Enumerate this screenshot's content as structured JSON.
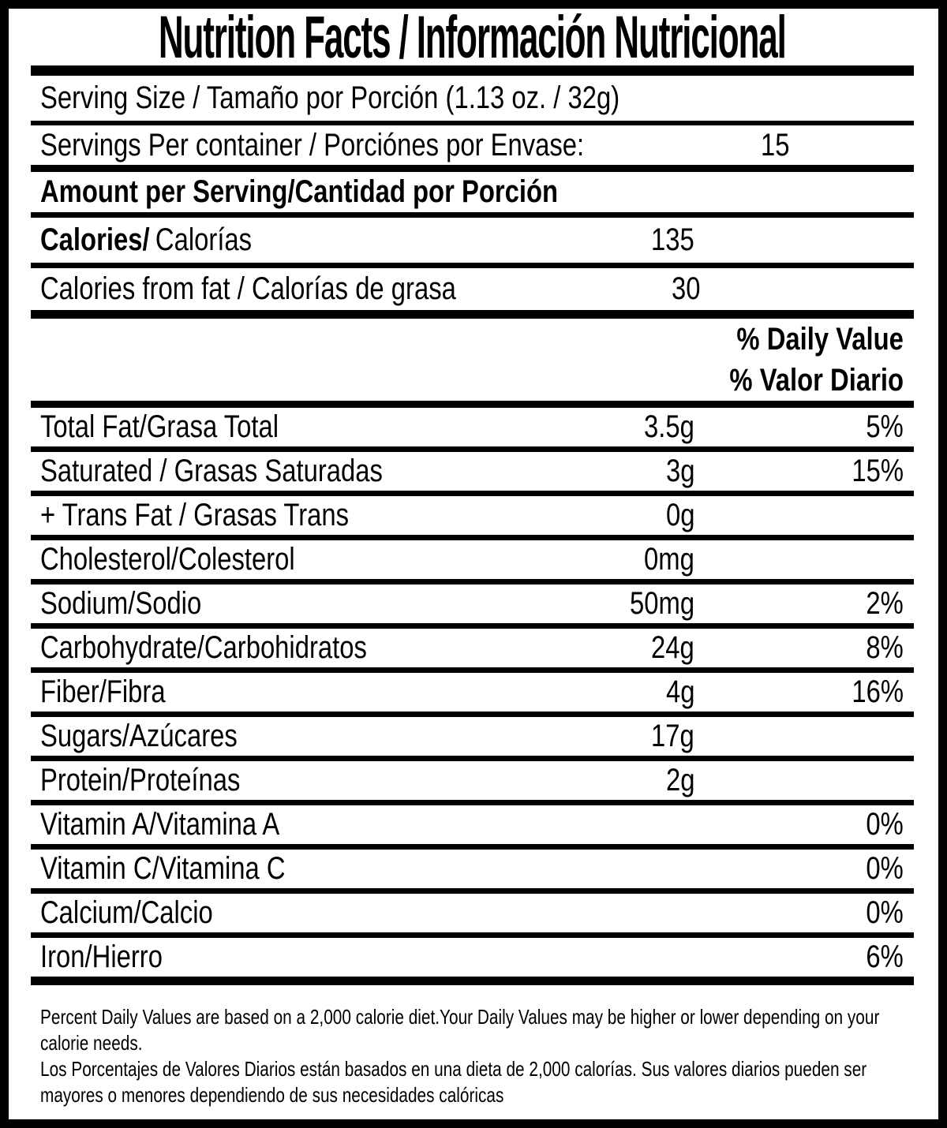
{
  "colors": {
    "ink": "#000000",
    "background": "#ffffff"
  },
  "title": "Nutrition Facts / Información Nutricional",
  "serving": {
    "size_label": "Serving Size / Tamaño por Porción (1.13 oz. / 32g)",
    "per_container_label": "Servings Per container / Porciónes por Envase:",
    "per_container_value": "15"
  },
  "amount_per_serving_label": "Amount per Serving/Cantidad por Porción",
  "calories": {
    "label_en": "Calories/",
    "label_es": "Calorías",
    "value": "135"
  },
  "calories_from_fat": {
    "label": "Calories from fat / Calorías de grasa",
    "value": "30"
  },
  "daily_value_header": {
    "en": "% Daily Value",
    "es": "% Valor Diario"
  },
  "nutrients": [
    {
      "label": "Total Fat/Grasa Total",
      "amount": "3.5g",
      "dv": "5%"
    },
    {
      "label": "Saturated / Grasas Saturadas",
      "amount": "3g",
      "dv": "15%"
    },
    {
      "label": "+ Trans Fat / Grasas Trans",
      "amount": "0g",
      "dv": ""
    },
    {
      "label": "Cholesterol/Colesterol",
      "amount": "0mg",
      "dv": ""
    },
    {
      "label": "Sodium/Sodio",
      "amount": "50mg",
      "dv": "2%"
    },
    {
      "label": "Carbohydrate/Carbohidratos",
      "amount": "24g",
      "dv": "8%"
    },
    {
      "label": "Fiber/Fibra",
      "amount": "4g",
      "dv": "16%"
    },
    {
      "label": "Sugars/Azúcares",
      "amount": "17g",
      "dv": ""
    },
    {
      "label": "Protein/Proteínas",
      "amount": "2g",
      "dv": ""
    },
    {
      "label": "Vitamin A/Vitamina A",
      "amount": "",
      "dv": "0%"
    },
    {
      "label": "Vitamin C/Vitamina C",
      "amount": "",
      "dv": "0%"
    },
    {
      "label": "Calcium/Calcio",
      "amount": "",
      "dv": "0%"
    },
    {
      "label": "Iron/Hierro",
      "amount": "",
      "dv": "6%"
    }
  ],
  "footnote": {
    "en_line1": "Percent Daily Values are based on a 2,000 calorie diet.Your Daily Values may be higher or lower depending on your",
    "en_line2": "calorie needs.",
    "es_line1": "Los Porcentajes de Valores Diarios están basados en una dieta de 2,000 calorías. Sus valores diarios pueden ser",
    "es_line2": "mayores o menores dependiendo de sus necesidades calóricas"
  }
}
